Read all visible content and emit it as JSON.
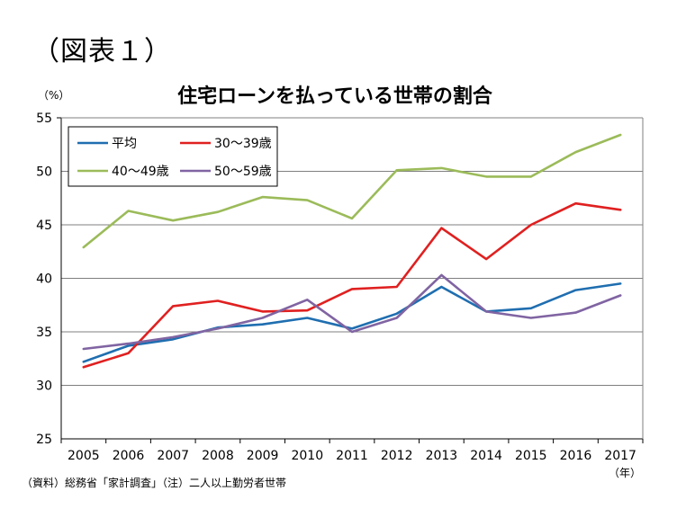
{
  "figure_label": "（図表１）",
  "source_note": "（資料）総務省「家計調査」（注）二人以上勤労者世帯",
  "colors": {
    "avg": "#1f6eb0",
    "age30": "#e02020",
    "age40": "#9bbb59",
    "age50": "#8064a2",
    "grid": "#7f7f7f",
    "axis": "#000000"
  },
  "chart_data": {
    "type": "line",
    "title": "住宅ローンを払っている世帯の割合",
    "ylabel": "（%）",
    "xlabel": "（年）",
    "ylim": [
      25,
      55
    ],
    "yticks": [
      25,
      30,
      35,
      40,
      45,
      50,
      55
    ],
    "categories": [
      "2005",
      "2006",
      "2007",
      "2008",
      "2009",
      "2010",
      "2011",
      "2012",
      "2013",
      "2014",
      "2015",
      "2016",
      "2017"
    ],
    "grid": true,
    "legend_position": "top-left",
    "series": [
      {
        "key": "avg",
        "name": "平均",
        "values": [
          32.2,
          33.7,
          34.3,
          35.4,
          35.7,
          36.3,
          35.3,
          36.7,
          39.2,
          36.9,
          37.2,
          38.9,
          39.5
        ]
      },
      {
        "key": "age30",
        "name": "30～39歳",
        "values": [
          31.7,
          33.0,
          37.4,
          37.9,
          36.9,
          37.0,
          39.0,
          39.2,
          44.7,
          41.8,
          45.0,
          47.0,
          46.4
        ]
      },
      {
        "key": "age40",
        "name": "40～49歳",
        "values": [
          42.9,
          46.3,
          45.4,
          46.2,
          47.6,
          47.3,
          45.6,
          50.1,
          50.3,
          49.5,
          49.5,
          51.8,
          53.4
        ]
      },
      {
        "key": "age50",
        "name": "50～59歳",
        "values": [
          33.4,
          33.9,
          34.5,
          35.3,
          36.3,
          38.0,
          35.0,
          36.3,
          40.3,
          36.9,
          36.3,
          36.8,
          38.4
        ]
      }
    ]
  }
}
